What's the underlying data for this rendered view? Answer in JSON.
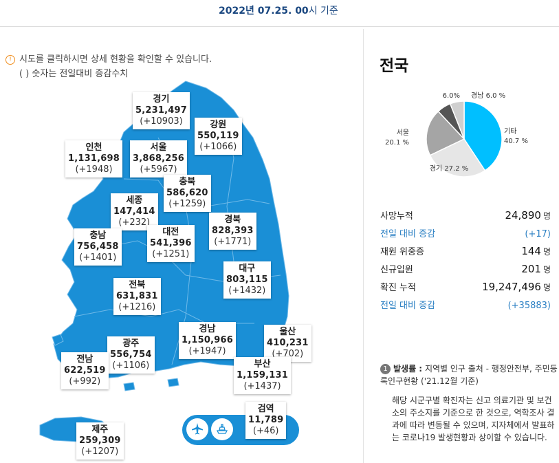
{
  "header": {
    "date_bold": "2022년 07.25. 00",
    "date_tail": "시 기준"
  },
  "notice": {
    "line1": "시도를 클릭하시면 상세 현황을 확인할 수 있습니다.",
    "line2": "( ) 숫자는 전일대비 증감수치"
  },
  "regions": [
    {
      "name": "경기",
      "count": "5,231,497",
      "delta": "(+10903)"
    },
    {
      "name": "강원",
      "count": "550,119",
      "delta": "(+1066)"
    },
    {
      "name": "인천",
      "count": "1,131,698",
      "delta": "(+1948)"
    },
    {
      "name": "서울",
      "count": "3,868,256",
      "delta": "(+5967)"
    },
    {
      "name": "충북",
      "count": "586,620",
      "delta": "(+1259)"
    },
    {
      "name": "세종",
      "count": "147,414",
      "delta": "(+232)"
    },
    {
      "name": "경북",
      "count": "828,393",
      "delta": "(+1771)"
    },
    {
      "name": "충남",
      "count": "756,458",
      "delta": "(+1401)"
    },
    {
      "name": "대전",
      "count": "541,396",
      "delta": "(+1251)"
    },
    {
      "name": "대구",
      "count": "803,115",
      "delta": "(+1432)"
    },
    {
      "name": "전북",
      "count": "631,831",
      "delta": "(+1216)"
    },
    {
      "name": "경남",
      "count": "1,150,966",
      "delta": "(+1947)"
    },
    {
      "name": "울산",
      "count": "410,231",
      "delta": "(+702)"
    },
    {
      "name": "광주",
      "count": "556,754",
      "delta": "(+1106)"
    },
    {
      "name": "전남",
      "count": "622,519",
      "delta": "(+992)"
    },
    {
      "name": "부산",
      "count": "1,159,131",
      "delta": "(+1437)"
    },
    {
      "name": "검역",
      "count": "11,789",
      "delta": "(+46)"
    },
    {
      "name": "제주",
      "count": "259,309",
      "delta": "(+1207)"
    }
  ],
  "transport": {
    "airport_icon": "airplane-icon",
    "port_icon": "ship-icon"
  },
  "national": {
    "title": "전국",
    "pie": [
      {
        "label": "기타",
        "pct": "40.7 %",
        "value": 40.7,
        "color": "#00bfff"
      },
      {
        "label": "경기",
        "pct": "27.2 %",
        "value": 27.2,
        "color": "#e6e6e6"
      },
      {
        "label": "서울",
        "pct": "20.1 %",
        "value": 20.1,
        "color": "#a5a5a5"
      },
      {
        "label": "6.0%",
        "pct": "",
        "value": 6.0,
        "color": "#555555"
      },
      {
        "label": "경남",
        "pct": "6.0 %",
        "value": 6.0,
        "color": "#cfcfcf"
      }
    ],
    "stats": [
      {
        "label": "사망누적",
        "value": "24,890",
        "unit": "명",
        "blue": false
      },
      {
        "label": "전일 대비 증감",
        "value": "(+17)",
        "unit": "",
        "blue": true
      },
      {
        "label": "재원 위중증",
        "value": "144",
        "unit": "명",
        "blue": false
      },
      {
        "label": "신규입원",
        "value": "201",
        "unit": "명",
        "blue": false
      },
      {
        "label": "확진 누적",
        "value": "19,247,496",
        "unit": "명",
        "blue": false
      },
      {
        "label": "전일 대비 증감",
        "value": "(+35883)",
        "unit": "",
        "blue": true
      }
    ]
  },
  "note": {
    "num": "1",
    "title": "발생률 :",
    "source": "지역별 인구 출처 - 행정안전부, 주민등록인구현황 ('21.12월 기준)",
    "body": "해당 시군구별 확진자는 신고 의료기관 및 보건소의 주소지를 기준으로 한 것으로, 역학조사 결과에 따라 변동될 수 있으며, 지자체에서 발표하는 코로나19 발생현황과 상이할 수 있습니다."
  }
}
